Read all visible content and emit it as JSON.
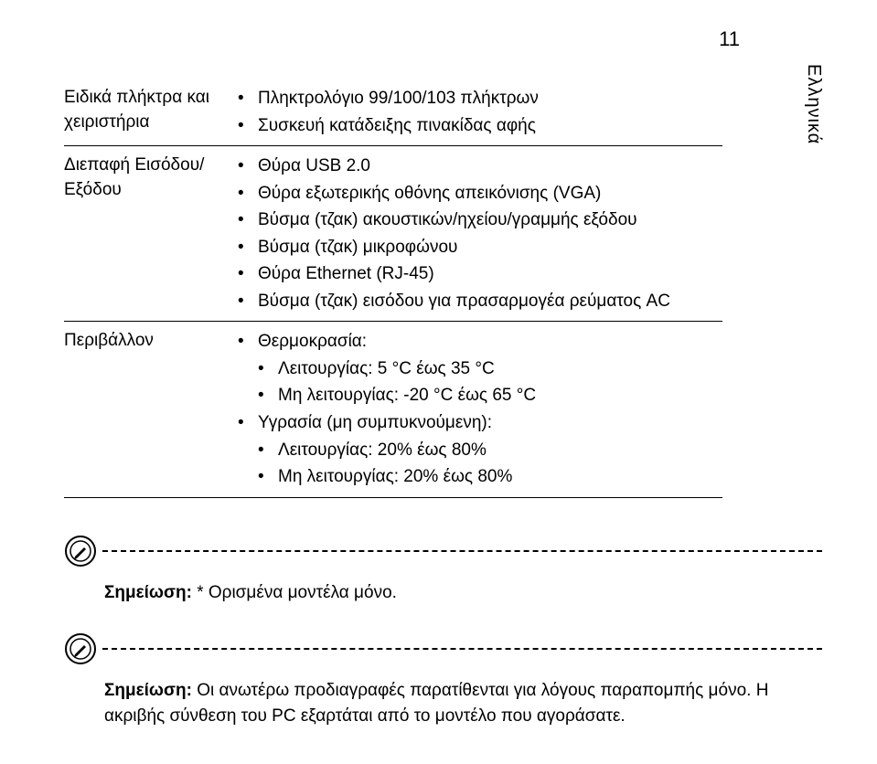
{
  "page_number": "11",
  "side_tab": "Ελληνικά",
  "rows": [
    {
      "label": "Ειδικά πλήκτρα και χειριστήρια",
      "items": [
        {
          "text": "Πληκτρολόγιο 99/100/103 πλήκτρων"
        },
        {
          "text": "Συσκευή κατάδειξης πινακίδας αφής"
        }
      ]
    },
    {
      "label": "Διεπαφή Εισόδου/Εξόδου",
      "items": [
        {
          "text": "Θύρα USB 2.0"
        },
        {
          "text": "Θύρα εξωτερικής οθόνης απεικόνισης (VGA)"
        },
        {
          "text": "Βύσμα (τζακ) ακουστικών/ηχείου/γραμμής εξόδου"
        },
        {
          "text": "Βύσμα (τζακ) μικροφώνου"
        },
        {
          "text": "Θύρα Ethernet (RJ-45)"
        },
        {
          "text": "Βύσμα (τζακ) εισόδου για πρασαρμογέα ρεύματος AC"
        }
      ]
    },
    {
      "label": "Περιβάλλον",
      "items": [
        {
          "text": "Θερμοκρασία:",
          "sub": [
            "Λειτουργίας: 5 °C έως 35 °C",
            "Μη λειτουργίας: -20 °C έως 65 °C"
          ]
        },
        {
          "text": "Υγρασία (μη συμπυκνούμενη):",
          "sub": [
            "Λειτουργίας: 20% έως 80%",
            "Μη λειτουργίας: 20% έως 80%"
          ]
        }
      ]
    }
  ],
  "notes": [
    {
      "bold": "Σημείωση:",
      "text": " * Ορισμένα μοντέλα μόνο."
    },
    {
      "bold": "Σημείωση:",
      "text": " Οι ανωτέρω προδιαγραφές παρατίθενται για λόγους παραπομπής μόνο. Η ακριβής σύνθεση του PC εξαρτάται από το μοντέλο που αγοράσατε."
    }
  ],
  "colors": {
    "text": "#000000",
    "background": "#ffffff",
    "rule": "#000000"
  }
}
